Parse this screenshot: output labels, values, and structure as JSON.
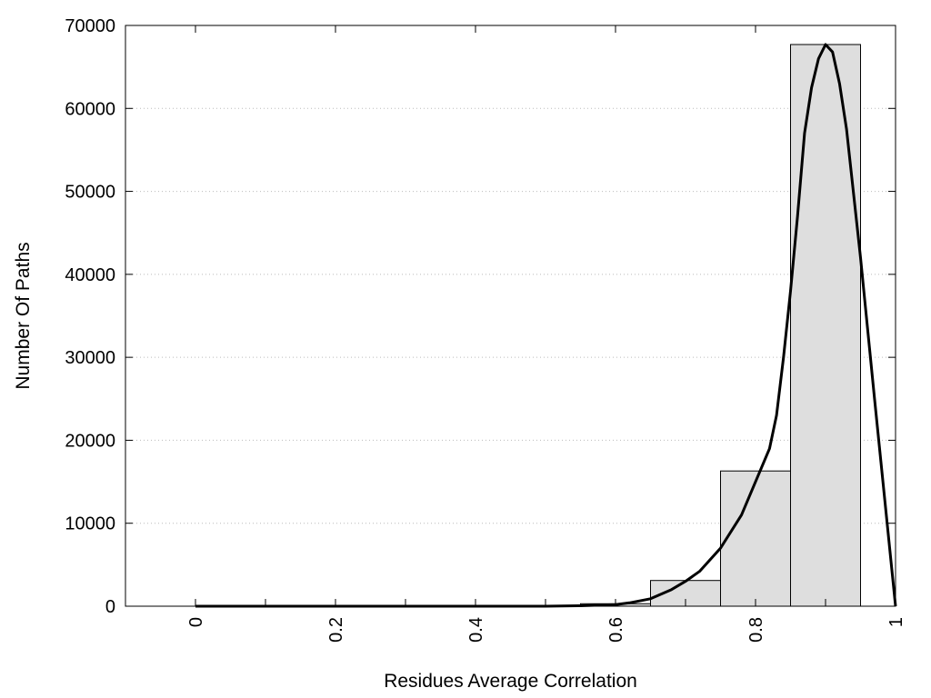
{
  "chart_data": {
    "type": "bar",
    "title": "",
    "xlabel": "Residues Average Correlation",
    "ylabel": "Number Of Paths",
    "xlim": [
      -0.1,
      1.0
    ],
    "ylim": [
      0,
      70000
    ],
    "x_ticks": [
      "0",
      "0.2",
      "0.4",
      "0.6",
      "0.8",
      "1"
    ],
    "y_ticks": [
      "0",
      "10000",
      "20000",
      "30000",
      "40000",
      "50000",
      "60000",
      "70000"
    ],
    "grid": "horizontal dotted",
    "bin_width": 0.1,
    "bins": [
      {
        "center": 0.0,
        "value": 0
      },
      {
        "center": 0.1,
        "value": 0
      },
      {
        "center": 0.2,
        "value": 0
      },
      {
        "center": 0.3,
        "value": 0
      },
      {
        "center": 0.4,
        "value": 0
      },
      {
        "center": 0.5,
        "value": 50
      },
      {
        "center": 0.6,
        "value": 300
      },
      {
        "center": 0.7,
        "value": 3100
      },
      {
        "center": 0.8,
        "value": 16300
      },
      {
        "center": 0.9,
        "value": 67700
      }
    ],
    "series": [
      {
        "type": "line",
        "points": [
          [
            0.0,
            0
          ],
          [
            0.1,
            0
          ],
          [
            0.2,
            0
          ],
          [
            0.3,
            0
          ],
          [
            0.4,
            0
          ],
          [
            0.5,
            0
          ],
          [
            0.55,
            50
          ],
          [
            0.6,
            200
          ],
          [
            0.62,
            400
          ],
          [
            0.65,
            900
          ],
          [
            0.68,
            2000
          ],
          [
            0.7,
            3000
          ],
          [
            0.72,
            4200
          ],
          [
            0.75,
            7000
          ],
          [
            0.78,
            11000
          ],
          [
            0.8,
            15000
          ],
          [
            0.82,
            19000
          ],
          [
            0.83,
            23000
          ],
          [
            0.84,
            30000
          ],
          [
            0.85,
            38000
          ],
          [
            0.86,
            47000
          ],
          [
            0.87,
            57000
          ],
          [
            0.88,
            62500
          ],
          [
            0.89,
            66000
          ],
          [
            0.9,
            67700
          ],
          [
            0.91,
            66800
          ],
          [
            0.92,
            63000
          ],
          [
            0.93,
            57500
          ],
          [
            0.95,
            42000
          ],
          [
            0.97,
            25000
          ],
          [
            1.0,
            0
          ]
        ]
      }
    ],
    "colors": {
      "bar_fill": "#dedede",
      "bar_stroke": "#000000",
      "line": "#000000",
      "grid": "#bbbbbb"
    }
  }
}
